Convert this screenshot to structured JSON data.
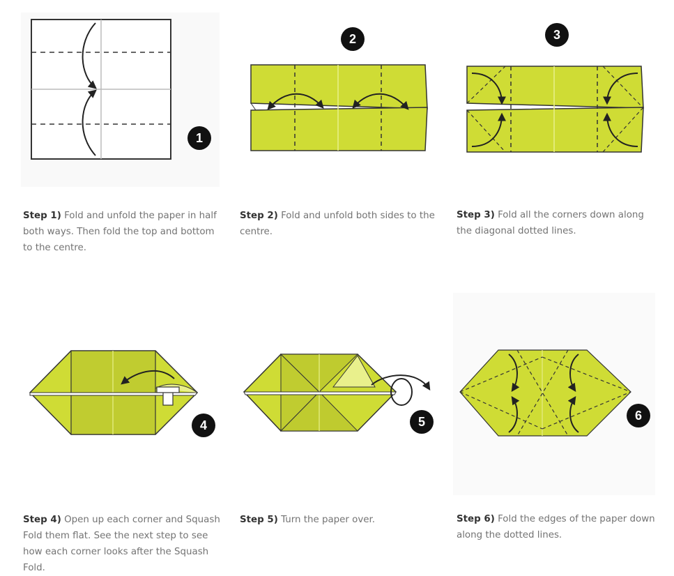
{
  "colors": {
    "paper_green": "#cfdc35",
    "paper_green_dark": "#bfcb2f",
    "outline": "#3b3b3b",
    "badge": "#111111",
    "caption_text": "#737373",
    "caption_label": "#333333"
  },
  "steps": [
    {
      "badge": "1",
      "label": "Step 1)",
      "text": "Fold and unfold the paper in half both ways. Then fold the top and bottom to the centre."
    },
    {
      "badge": "2",
      "label": "Step 2)",
      "text": "Fold and unfold both sides to the centre."
    },
    {
      "badge": "3",
      "label": "Step 3)",
      "text": "Fold all the corners down along the diagonal dotted lines."
    },
    {
      "badge": "4",
      "label": "Step 4)",
      "text": "Open up each corner and Squash Fold them flat. See the next step to see how each corner looks after the Squash Fold."
    },
    {
      "badge": "5",
      "label": "Step 5)",
      "text": "Turn the paper over."
    },
    {
      "badge": "6",
      "label": "Step 6)",
      "text": "Fold the edges of the paper down along the dotted lines."
    }
  ]
}
